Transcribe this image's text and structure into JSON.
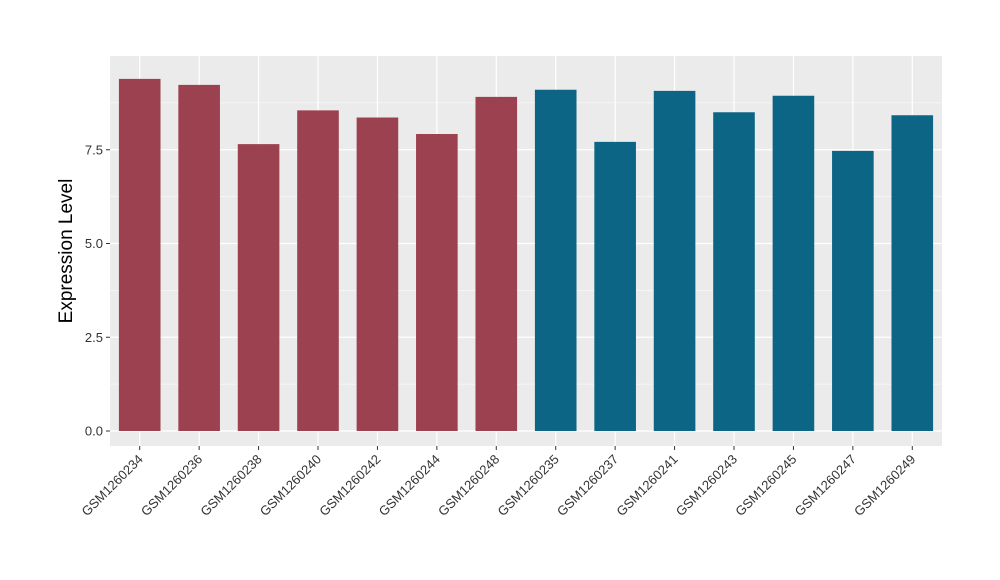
{
  "chart_data": {
    "type": "bar",
    "title": "",
    "xlabel": "",
    "ylabel": "Expression Level",
    "ylim": [
      -0.4,
      10.0
    ],
    "yticks": [
      0.0,
      2.5,
      5.0,
      7.5
    ],
    "ytick_labels": [
      "0.0",
      "2.5",
      "5.0",
      "7.5"
    ],
    "grid": true,
    "legend": "none",
    "categories": [
      "GSM1260234",
      "GSM1260236",
      "GSM1260238",
      "GSM1260240",
      "GSM1260242",
      "GSM1260244",
      "GSM1260248",
      "GSM1260235",
      "GSM1260237",
      "GSM1260241",
      "GSM1260243",
      "GSM1260245",
      "GSM1260247",
      "GSM1260249"
    ],
    "values": [
      9.39,
      9.23,
      7.65,
      8.55,
      8.36,
      7.92,
      8.91,
      9.1,
      7.71,
      9.07,
      8.5,
      8.94,
      7.47,
      8.42
    ],
    "group_index": [
      0,
      0,
      0,
      0,
      0,
      0,
      0,
      1,
      1,
      1,
      1,
      1,
      1,
      1
    ],
    "colors": [
      "#9b4150",
      "#0c6584"
    ],
    "panel_background": "#ebebeb",
    "gridline_color": "#ffffff"
  }
}
